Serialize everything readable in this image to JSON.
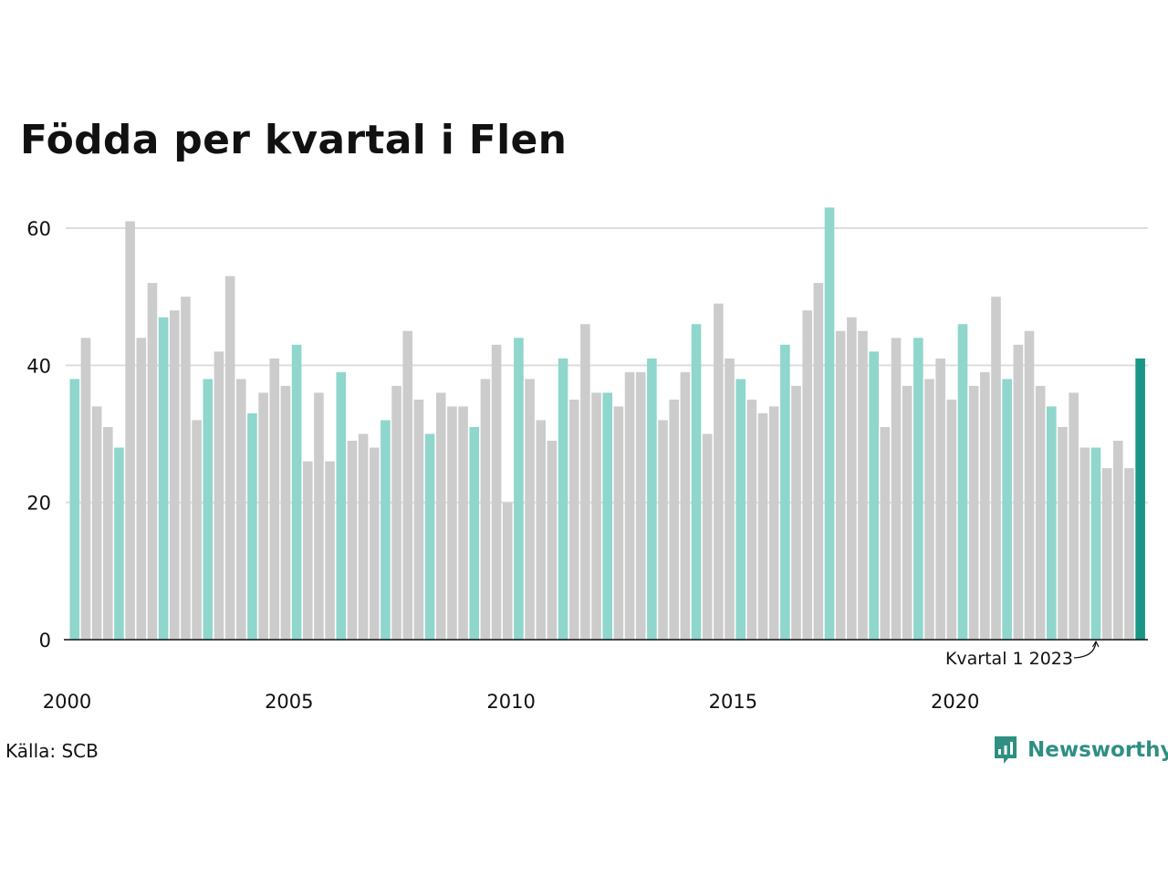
{
  "title": "Födda per kvartal i Flen",
  "source": "Källa: SCB",
  "brand": {
    "name": "Newsworthy",
    "icon": "newsworthy-logo-icon"
  },
  "colors": {
    "q1": "#8fd6cc",
    "other": "#cccccc",
    "highlight": "#1a9687",
    "grid": "#dddddd",
    "axis": "#111111",
    "brand": "#2f8f83"
  },
  "chart_data": {
    "type": "bar",
    "title": "Födda per kvartal i Flen",
    "xlabel": "",
    "ylabel": "",
    "ylim": [
      0,
      65
    ],
    "y_ticks": [
      0,
      20,
      40,
      60
    ],
    "x_tick_labels": [
      "2000",
      "2005",
      "2010",
      "2015",
      "2020"
    ],
    "grid": true,
    "legend": "none",
    "annotation": {
      "text": "Kvartal 1 2023",
      "target_index": 92
    },
    "start": {
      "year": 2000,
      "quarter": 1
    },
    "values": [
      38,
      44,
      34,
      31,
      28,
      61,
      44,
      52,
      47,
      48,
      50,
      32,
      38,
      42,
      53,
      38,
      33,
      36,
      41,
      37,
      43,
      26,
      36,
      26,
      39,
      29,
      30,
      28,
      32,
      37,
      45,
      35,
      30,
      36,
      34,
      34,
      31,
      38,
      43,
      20,
      44,
      38,
      32,
      29,
      41,
      35,
      46,
      36,
      36,
      34,
      39,
      39,
      41,
      32,
      35,
      39,
      46,
      30,
      49,
      41,
      38,
      35,
      33,
      34,
      43,
      37,
      48,
      52,
      63,
      45,
      47,
      45,
      42,
      31,
      44,
      37,
      44,
      38,
      41,
      35,
      46,
      37,
      39,
      50,
      38,
      43,
      45,
      37,
      34,
      31,
      36,
      28,
      28,
      25,
      29,
      25,
      41
    ]
  }
}
